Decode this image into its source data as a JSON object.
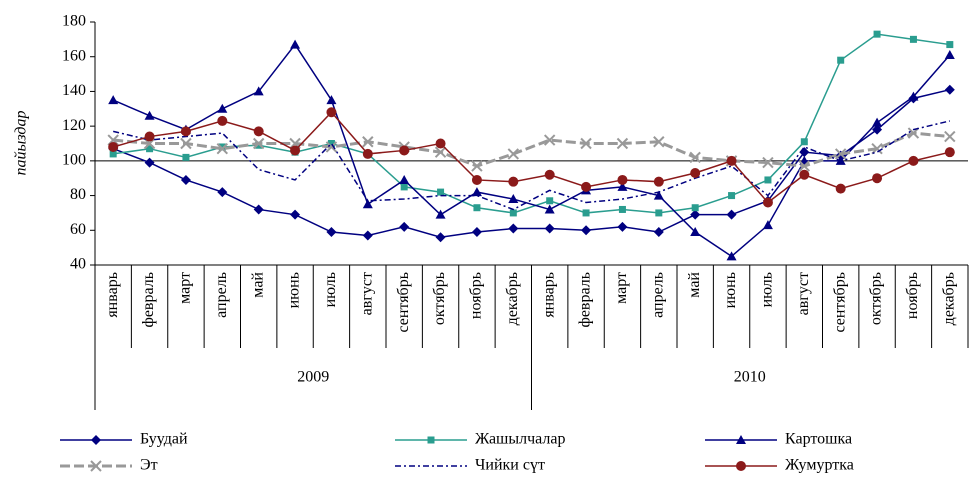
{
  "chart_data": {
    "type": "line",
    "y_axis_label": "пайыздар",
    "categories": [
      "январь",
      "февраль",
      "март",
      "апрель",
      "май",
      "июнь",
      "июль",
      "август",
      "сентябрь",
      "октябрь",
      "ноябрь",
      "декабрь",
      "январь",
      "февраль",
      "март",
      "апрель",
      "май",
      "июнь",
      "июль",
      "август",
      "сентябрь",
      "октябрь",
      "ноябрь",
      "декабрь"
    ],
    "groups": [
      "2009",
      "2010"
    ],
    "ylim": [
      40,
      180
    ],
    "yticks": [
      40,
      60,
      80,
      100,
      120,
      140,
      160,
      180
    ],
    "reference_line": 100,
    "series": [
      {
        "name": "Буудай",
        "color": "#000080",
        "marker": "diamond",
        "dash": "solid",
        "values": [
          107,
          99,
          89,
          82,
          72,
          69,
          59,
          57,
          62,
          56,
          59,
          61,
          61,
          60,
          62,
          59,
          69,
          69,
          77,
          105,
          103,
          118,
          136,
          141
        ]
      },
      {
        "name": "Жашылчалар",
        "color": "#2a9d8f",
        "marker": "square",
        "dash": "solid",
        "values": [
          104,
          107,
          102,
          108,
          109,
          105,
          110,
          104,
          85,
          82,
          73,
          70,
          77,
          70,
          72,
          70,
          73,
          80,
          89,
          111,
          158,
          173,
          170,
          167
        ]
      },
      {
        "name": "Картошка",
        "color": "#000080",
        "marker": "triangle",
        "dash": "solid",
        "values": [
          135,
          126,
          118,
          130,
          140,
          167,
          135,
          75,
          89,
          69,
          82,
          78,
          72,
          83,
          85,
          80,
          59,
          45,
          63,
          100,
          100,
          122,
          137,
          161
        ]
      },
      {
        "name": "Эт",
        "color": "#999999",
        "marker": "x",
        "dash": "dashed",
        "values": [
          112,
          110,
          110,
          107,
          110,
          110,
          108,
          111,
          108,
          105,
          97,
          104,
          112,
          110,
          110,
          111,
          102,
          100,
          99,
          97,
          104,
          107,
          116,
          114
        ]
      },
      {
        "name": "Чийки сүт",
        "color": "#000080",
        "marker": "none",
        "dash": "dashdot",
        "values": [
          117,
          112,
          114,
          116,
          95,
          89,
          110,
          77,
          78,
          80,
          80,
          72,
          83,
          76,
          78,
          82,
          90,
          97,
          80,
          108,
          100,
          105,
          118,
          123
        ]
      },
      {
        "name": "Жумуртка",
        "color": "#8b1a1a",
        "marker": "circle",
        "dash": "solid",
        "values": [
          108,
          114,
          117,
          123,
          117,
          106,
          128,
          104,
          106,
          110,
          89,
          88,
          92,
          85,
          89,
          88,
          93,
          100,
          76,
          92,
          84,
          90,
          100,
          105
        ]
      }
    ]
  }
}
